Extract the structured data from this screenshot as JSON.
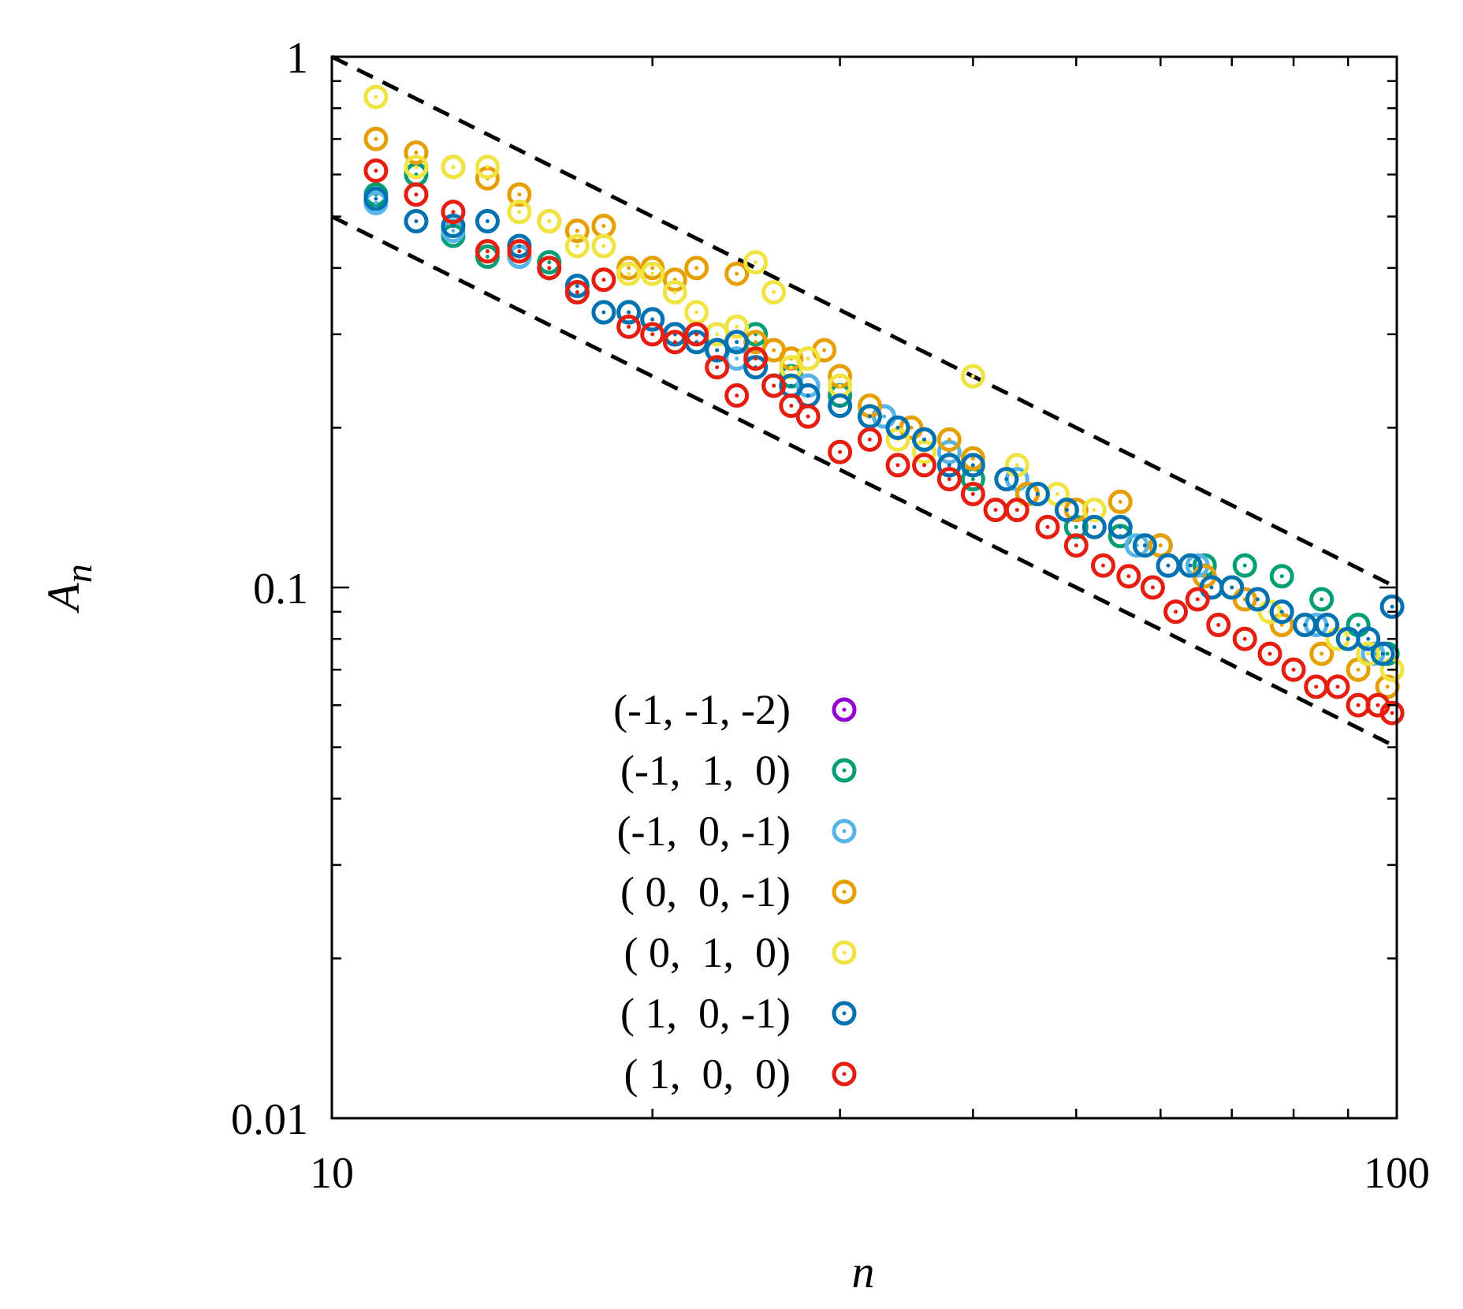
{
  "chart_data": {
    "type": "scatter",
    "title": "",
    "xlabel": "n",
    "ylabel": "A",
    "ylabel_subscript": "n",
    "xscale": "log",
    "yscale": "log",
    "xlim": [
      10,
      100
    ],
    "ylim": [
      0.01,
      1
    ],
    "xticks": [
      {
        "value": 10,
        "label": "10"
      },
      {
        "value": 100,
        "label": "100"
      }
    ],
    "yticks": [
      {
        "value": 0.01,
        "label": "0.01"
      },
      {
        "value": 0.1,
        "label": "0.1"
      },
      {
        "value": 1,
        "label": "1"
      }
    ],
    "grid": false,
    "legend_position": "bottom-center",
    "reference_lines": [
      {
        "name": "upper-bound",
        "style": "dashed",
        "color": "#000000",
        "x": [
          10,
          100
        ],
        "y": [
          1.0,
          0.1
        ]
      },
      {
        "name": "lower-bound",
        "style": "dashed",
        "color": "#000000",
        "x": [
          10,
          100
        ],
        "y": [
          0.5,
          0.05
        ]
      }
    ],
    "series": [
      {
        "name": "(-1, -1, -2)",
        "color": "#9400d3",
        "x": [],
        "y": []
      },
      {
        "name": "(-1,  1,  0)",
        "color": "#009e73",
        "x": [
          11,
          12,
          13,
          14,
          15,
          16,
          17,
          19,
          21,
          23,
          25,
          27,
          30,
          33,
          36,
          40,
          45,
          50,
          55,
          60,
          66,
          72,
          78,
          85,
          92,
          98
        ],
        "y": [
          0.55,
          0.6,
          0.46,
          0.42,
          0.42,
          0.41,
          0.36,
          0.33,
          0.3,
          0.28,
          0.3,
          0.25,
          0.23,
          0.21,
          0.19,
          0.16,
          0.15,
          0.13,
          0.125,
          0.12,
          0.11,
          0.11,
          0.105,
          0.095,
          0.085,
          0.075
        ]
      },
      {
        "name": "(-1,  0, -1)",
        "color": "#56b4e9",
        "x": [
          11,
          13,
          15,
          17,
          20,
          24,
          28,
          33,
          38,
          44,
          50,
          57,
          65,
          74,
          84,
          95
        ],
        "y": [
          0.53,
          0.47,
          0.42,
          0.36,
          0.32,
          0.27,
          0.24,
          0.21,
          0.18,
          0.16,
          0.14,
          0.12,
          0.11,
          0.095,
          0.085,
          0.075
        ]
      },
      {
        "name": "( 0,  0, -1)",
        "color": "#e69f00",
        "x": [
          11,
          12,
          13,
          14,
          15,
          16,
          17,
          18,
          19,
          20,
          21,
          22,
          24,
          25,
          26,
          27,
          28,
          29,
          30,
          32,
          35,
          38,
          40,
          45,
          50,
          55,
          60,
          66,
          72,
          78,
          85,
          92,
          98
        ],
        "y": [
          0.7,
          0.66,
          0.62,
          0.59,
          0.55,
          0.49,
          0.47,
          0.48,
          0.4,
          0.4,
          0.38,
          0.4,
          0.39,
          0.29,
          0.28,
          0.27,
          0.27,
          0.28,
          0.25,
          0.22,
          0.2,
          0.19,
          0.175,
          0.15,
          0.14,
          0.145,
          0.12,
          0.105,
          0.095,
          0.085,
          0.075,
          0.07,
          0.065
        ]
      },
      {
        "name": "( 0,  1,  0)",
        "color": "#f0e442",
        "x": [
          11,
          12,
          13,
          14,
          15,
          16,
          17,
          18,
          19,
          20,
          21,
          22,
          23,
          24,
          25,
          26,
          27,
          28,
          30,
          32,
          34,
          36,
          38,
          40,
          44,
          48,
          52,
          58,
          64,
          70,
          76,
          82,
          88,
          94,
          99
        ],
        "y": [
          0.84,
          0.62,
          0.62,
          0.62,
          0.51,
          0.49,
          0.44,
          0.44,
          0.39,
          0.39,
          0.36,
          0.33,
          0.3,
          0.31,
          0.41,
          0.36,
          0.26,
          0.27,
          0.24,
          0.21,
          0.19,
          0.18,
          0.17,
          0.25,
          0.17,
          0.15,
          0.14,
          0.12,
          0.11,
          0.1,
          0.09,
          0.085,
          0.08,
          0.075,
          0.07
        ]
      },
      {
        "name": "( 1,  0, -1)",
        "color": "#0072b2",
        "x": [
          11,
          12,
          13,
          14,
          15,
          16,
          17,
          18,
          19,
          20,
          21,
          22,
          23,
          24,
          25,
          26,
          27,
          28,
          30,
          32,
          34,
          36,
          38,
          40,
          43,
          46,
          49,
          52,
          55,
          58,
          61,
          64,
          67,
          70,
          74,
          78,
          82,
          86,
          90,
          94,
          97,
          99
        ],
        "y": [
          0.54,
          0.49,
          0.48,
          0.49,
          0.44,
          0.4,
          0.37,
          0.33,
          0.33,
          0.32,
          0.3,
          0.29,
          0.28,
          0.29,
          0.26,
          0.24,
          0.24,
          0.23,
          0.22,
          0.21,
          0.2,
          0.19,
          0.17,
          0.17,
          0.16,
          0.15,
          0.14,
          0.13,
          0.13,
          0.12,
          0.11,
          0.11,
          0.1,
          0.1,
          0.095,
          0.09,
          0.085,
          0.085,
          0.08,
          0.08,
          0.075,
          0.092
        ]
      },
      {
        "name": "( 1,  0,  0)",
        "color": "#e51e10",
        "x": [
          11,
          12,
          13,
          14,
          15,
          16,
          17,
          18,
          19,
          20,
          21,
          22,
          23,
          24,
          25,
          26,
          27,
          28,
          30,
          32,
          34,
          36,
          38,
          40,
          42,
          44,
          47,
          50,
          53,
          56,
          59,
          62,
          65,
          68,
          72,
          76,
          80,
          84,
          88,
          92,
          96,
          99
        ],
        "y": [
          0.61,
          0.55,
          0.51,
          0.43,
          0.43,
          0.4,
          0.36,
          0.38,
          0.31,
          0.3,
          0.29,
          0.3,
          0.26,
          0.23,
          0.27,
          0.24,
          0.22,
          0.21,
          0.18,
          0.19,
          0.17,
          0.17,
          0.16,
          0.15,
          0.14,
          0.14,
          0.13,
          0.12,
          0.11,
          0.105,
          0.1,
          0.09,
          0.095,
          0.085,
          0.08,
          0.075,
          0.07,
          0.065,
          0.065,
          0.06,
          0.06,
          0.058
        ]
      }
    ]
  }
}
